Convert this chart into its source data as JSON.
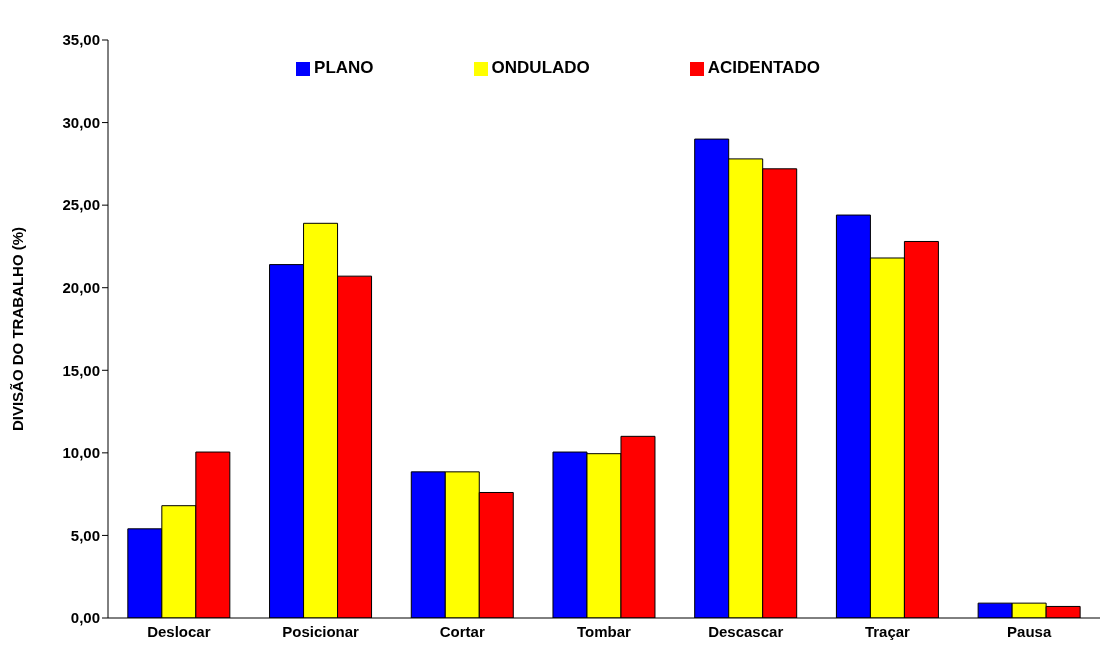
{
  "chart_data": {
    "type": "bar",
    "ylabel": "DIVISÃO DO TRABALHO (%)",
    "categories": [
      "Deslocar",
      "Posicionar",
      "Cortar",
      "Tombar",
      "Descascar",
      "Traçar",
      "Pausa"
    ],
    "series": [
      {
        "name": "PLANO",
        "color": "#0000ff",
        "values": [
          5.4,
          21.4,
          8.85,
          10.05,
          29.0,
          24.4,
          0.9
        ]
      },
      {
        "name": "ONDULADO",
        "color": "#ffff00",
        "values": [
          6.8,
          23.9,
          8.85,
          9.95,
          27.8,
          21.8,
          0.9
        ]
      },
      {
        "name": "ACIDENTADO",
        "color": "#ff0000",
        "values": [
          10.05,
          20.7,
          7.6,
          11.0,
          27.2,
          22.8,
          0.7
        ]
      }
    ],
    "ylim": [
      0,
      35
    ],
    "yticks": [
      {
        "value": 0,
        "label": "0,00"
      },
      {
        "value": 5,
        "label": "5,00"
      },
      {
        "value": 10,
        "label": "10,00"
      },
      {
        "value": 15,
        "label": "15,00"
      },
      {
        "value": 20,
        "label": "20,00"
      },
      {
        "value": 25,
        "label": "25,00"
      },
      {
        "value": 30,
        "label": "30,00"
      },
      {
        "value": 35,
        "label": "35,00"
      }
    ],
    "grid": false,
    "legend": "top"
  }
}
